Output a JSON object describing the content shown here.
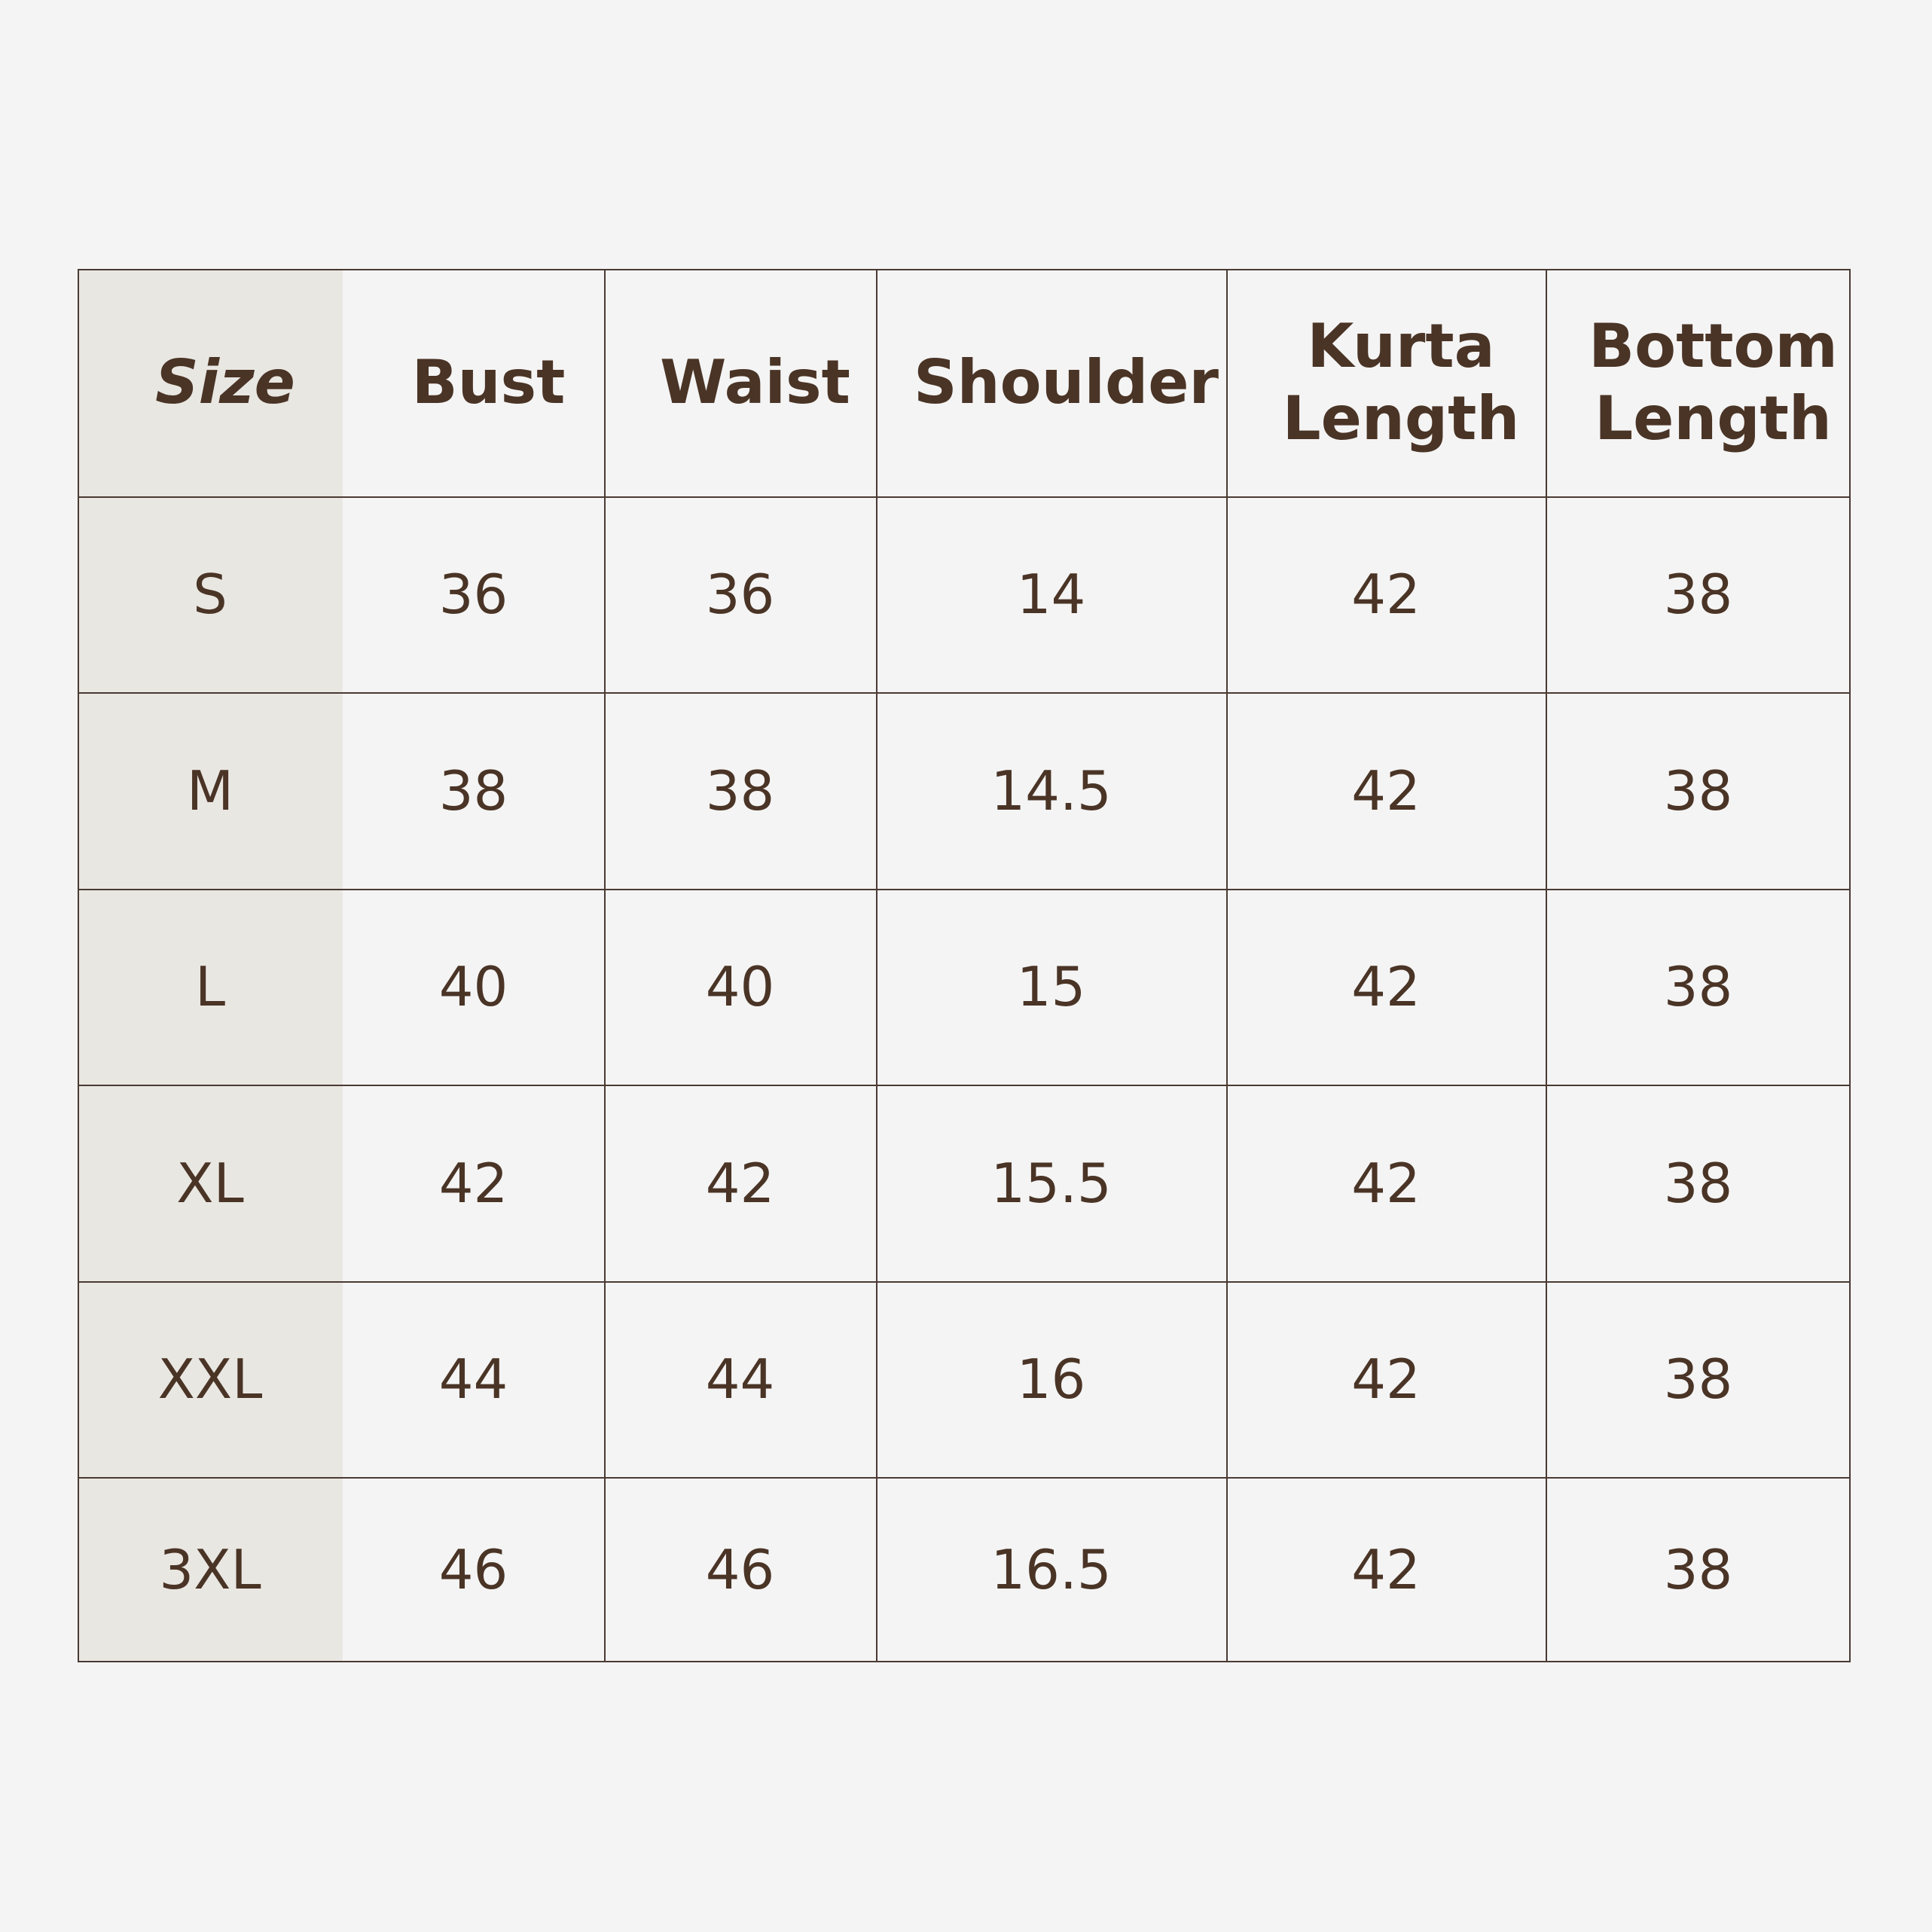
{
  "colors": {
    "text": "#4a3426",
    "background": "#f4f4f4",
    "size_column_shade": "#e9e7e2",
    "grid": "#4a3a33"
  },
  "headers": [
    "Size",
    "Bust",
    "Waist",
    "Shoulder",
    "Kurta Length",
    "Bottom Length"
  ],
  "rows": [
    [
      "S",
      "36",
      "36",
      "14",
      "42",
      "38"
    ],
    [
      "M",
      "38",
      "38",
      "14.5",
      "42",
      "38"
    ],
    [
      "L",
      "40",
      "40",
      "15",
      "42",
      "38"
    ],
    [
      "XL",
      "42",
      "42",
      "15.5",
      "42",
      "38"
    ],
    [
      "XXL",
      "44",
      "44",
      "16",
      "42",
      "38"
    ],
    [
      "3XL",
      "46",
      "46",
      "16.5",
      "42",
      "38"
    ]
  ]
}
